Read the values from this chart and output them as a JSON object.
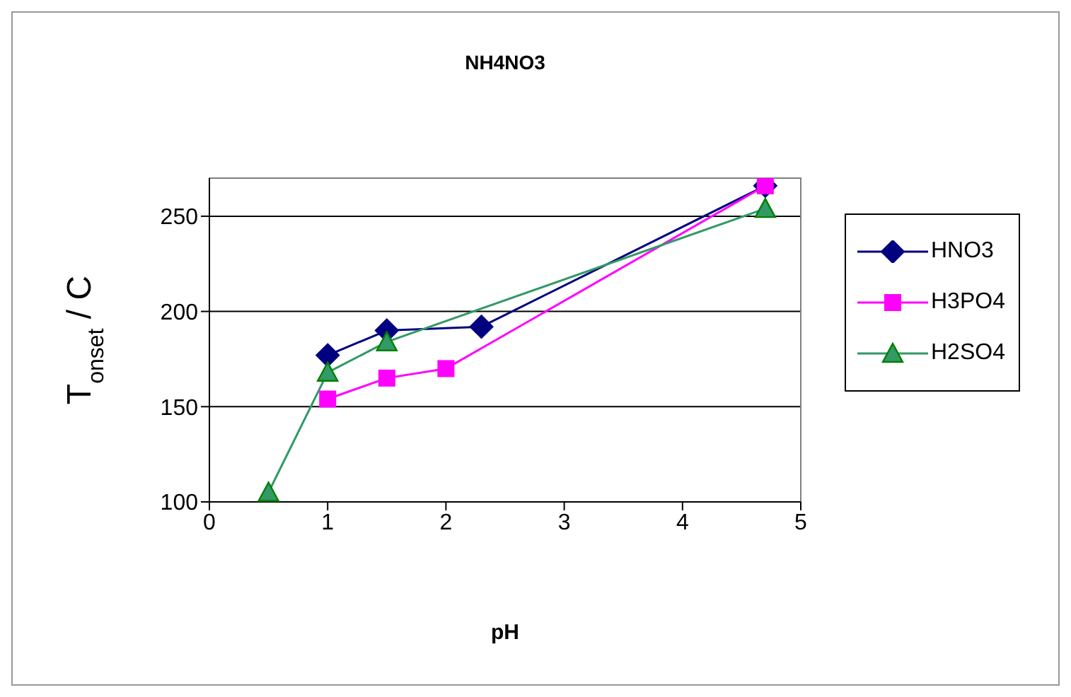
{
  "chart_data": {
    "type": "line",
    "title": "NH4NO3",
    "xlabel": "pH",
    "ylabel": "T$_{onset}$ / C",
    "xlim": [
      0,
      5
    ],
    "xticks": [
      0,
      1,
      2,
      3,
      4,
      5
    ],
    "ylim": [
      100,
      270
    ],
    "yticks": [
      100,
      150,
      200,
      250
    ],
    "grid": "y",
    "legend": "right",
    "series": [
      {
        "name": "HNO3",
        "color": "#000080",
        "marker": "diamond",
        "x": [
          1,
          1.5,
          2.3,
          4.7
        ],
        "values": [
          177,
          190,
          192,
          266
        ]
      },
      {
        "name": "H3PO4",
        "color": "#ff00ff",
        "marker": "square",
        "x": [
          1,
          1.5,
          2,
          4.7
        ],
        "values": [
          154,
          165,
          170,
          266
        ]
      },
      {
        "name": "H2SO4",
        "color": "#339966",
        "marker": "triangle",
        "x": [
          0.5,
          1,
          1.5,
          4.7
        ],
        "values": [
          105,
          168,
          184,
          254
        ]
      }
    ]
  }
}
